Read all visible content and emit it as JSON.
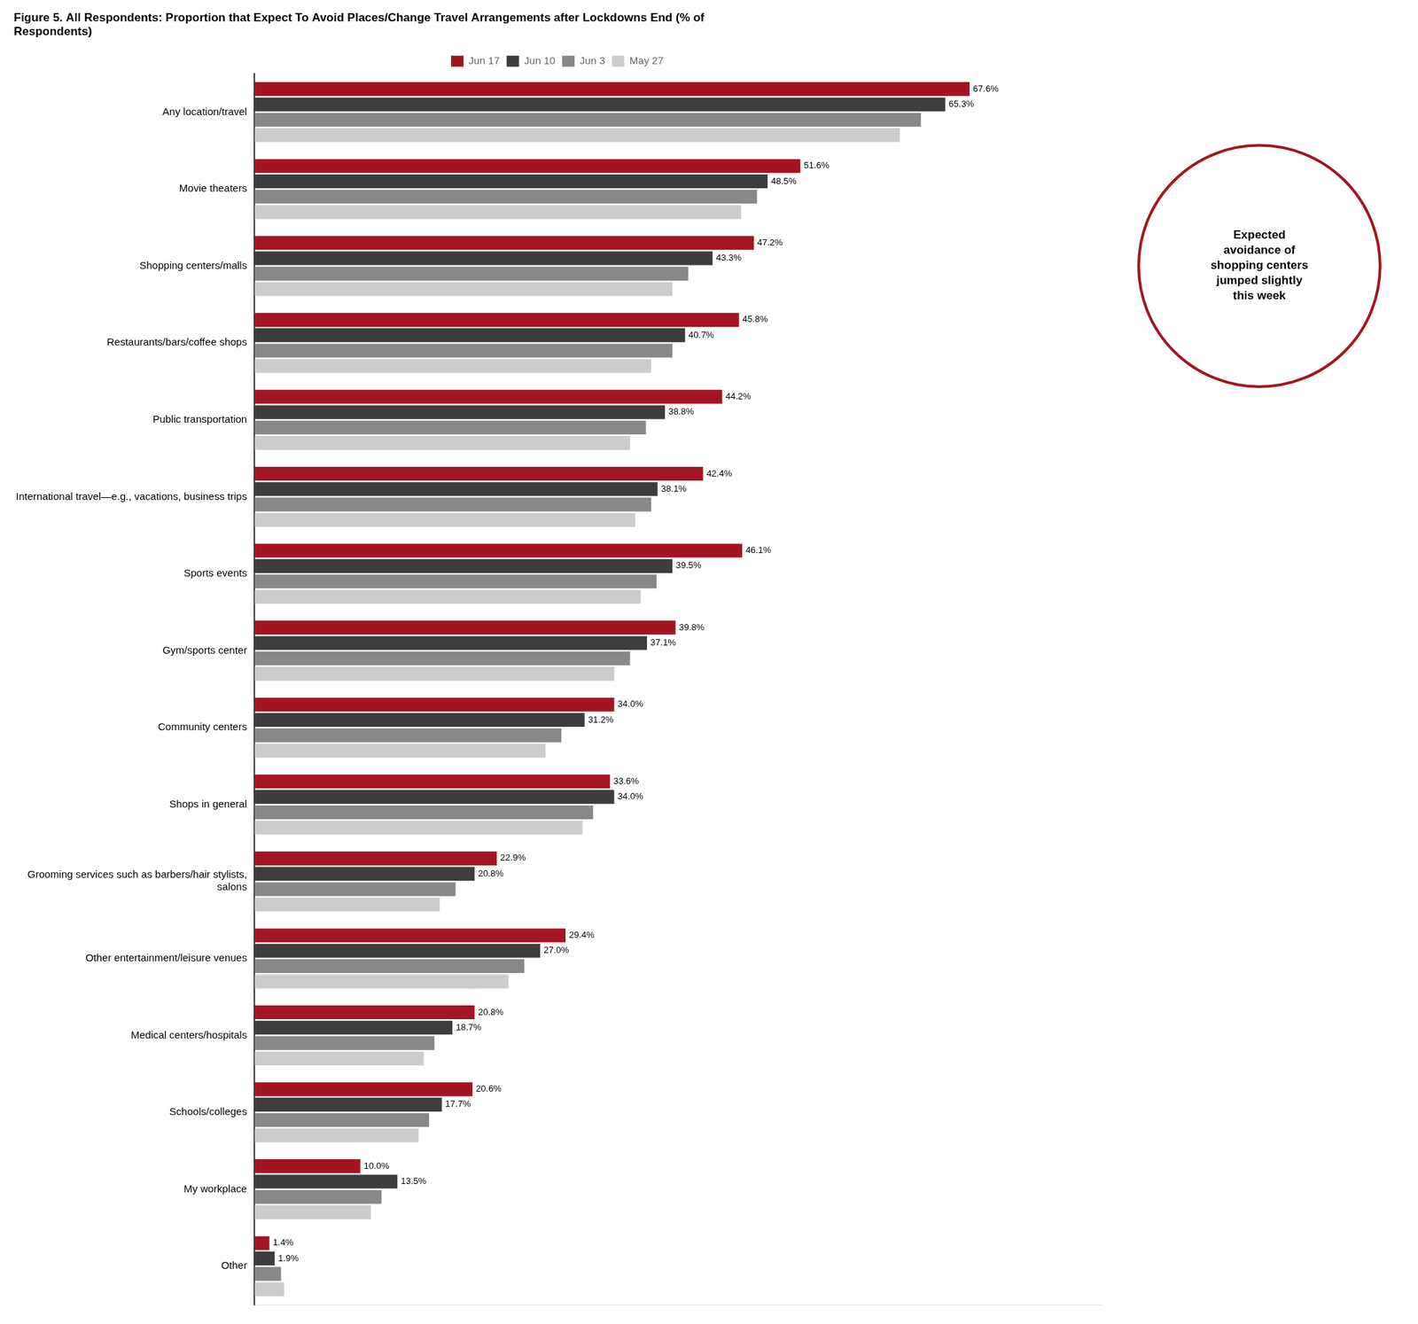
{
  "chart_data": {
    "type": "bar",
    "orientation": "horizontal",
    "title": [
      "Figure 5. All Respondents: Proportion that Expect To Avoid Places/Change Travel Arrangements after Lockdowns End (% of",
      "Respondents)"
    ],
    "categories": [
      "Any location/travel",
      "Movie theaters",
      "Shopping centers/malls",
      "Restaurants/bars/coffee shops",
      "Public transportation",
      "International travel—e.g., vacations, business trips",
      "Sports events",
      "Gym/sports center",
      "Community centers",
      "Shops in general",
      "Grooming services such as barbers/hair stylists,\nsalons",
      "Other entertainment/leisure venues",
      "Medical centers/hospitals",
      "Schools/colleges",
      "My workplace",
      "Other"
    ],
    "series": [
      {
        "name": "Jun 17",
        "color": "#A31621",
        "values": [
          67.6,
          51.6,
          47.2,
          45.8,
          44.2,
          42.4,
          46.1,
          39.8,
          34.0,
          33.6,
          22.9,
          29.4,
          20.8,
          20.6,
          10.0,
          1.4
        ],
        "data_labels": true,
        "value_labels": [
          "67.6%",
          "51.6%",
          "47.2%",
          "45.8%",
          "44.2%",
          "42.4%",
          "46.1%",
          "39.8%",
          "34.0%",
          "33.6%",
          "22.9%",
          "29.4%",
          "20.8%",
          "20.6%",
          "10.0%",
          "1.4%"
        ]
      },
      {
        "name": "Jun 10",
        "color": "#3D3D3D",
        "values": [
          65.3,
          48.5,
          43.3,
          40.7,
          38.8,
          38.1,
          39.5,
          37.1,
          31.2,
          34.0,
          20.8,
          27.0,
          18.7,
          17.7,
          13.5,
          1.9
        ],
        "data_labels": true,
        "value_labels": [
          "65.3%",
          "48.5%",
          "43.3%",
          "40.7%",
          "38.8%",
          "38.1%",
          "39.5%",
          "37.1%",
          "31.2%",
          "34.0%",
          "20.8%",
          "27.0%",
          "18.7%",
          "17.7%",
          "13.5%",
          "1.9%"
        ]
      },
      {
        "name": "Jun 3",
        "color": "#888888",
        "values": [
          63.0,
          47.5,
          41.0,
          39.5,
          37.0,
          37.5,
          38.0,
          35.5,
          29.0,
          32.0,
          19.0,
          25.5,
          17.0,
          16.5,
          12.0,
          2.5
        ]
      },
      {
        "name": "May 27",
        "color": "#CCCCCC",
        "values": [
          61.0,
          46.0,
          39.5,
          37.5,
          35.5,
          36.0,
          36.5,
          34.0,
          27.5,
          31.0,
          17.5,
          24.0,
          16.0,
          15.5,
          11.0,
          2.8
        ]
      }
    ],
    "xlim": [
      0,
      80
    ],
    "tick_labels": "y",
    "grid": false,
    "legend": "top",
    "annotations": [
      {
        "text": "Expected\navoidance of\nshopping centers\njumped slightly\nthis week",
        "category": "Shopping centers/malls",
        "color": "#A31621"
      }
    ]
  }
}
